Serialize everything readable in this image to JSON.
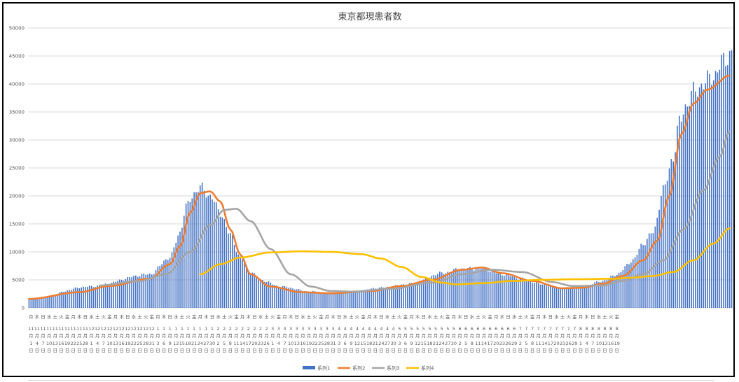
{
  "chart_data": {
    "type": "bar+line",
    "title": "東京都現患者数",
    "ylim": [
      0,
      50000
    ],
    "yticks": [
      0,
      5000,
      10000,
      15000,
      20000,
      25000,
      30000,
      35000,
      40000,
      45000,
      50000
    ],
    "weekdays": [
      "日",
      "月",
      "火",
      "水",
      "木",
      "金",
      "土"
    ],
    "first_weekday_index": 0,
    "xlabels": [
      "11/1",
      "11/4",
      "11/7",
      "11/10",
      "11/13",
      "11/16",
      "11/19",
      "11/22",
      "11/25",
      "11/28",
      "12/1",
      "12/4",
      "12/7",
      "12/10",
      "12/13",
      "12/16",
      "12/19",
      "12/22",
      "12/25",
      "12/28",
      "12/31",
      "1/3",
      "1/6",
      "1/9",
      "1/12",
      "1/15",
      "1/18",
      "1/21",
      "1/24",
      "1/27",
      "1/30",
      "2/2",
      "2/5",
      "2/8",
      "2/11",
      "2/14",
      "2/17",
      "2/20",
      "2/23",
      "2/26",
      "3/1",
      "3/4",
      "3/7",
      "3/10",
      "3/13",
      "3/16",
      "3/19",
      "3/22",
      "3/25",
      "3/28",
      "3/31",
      "4/3",
      "4/6",
      "4/9",
      "4/12",
      "4/15",
      "4/18",
      "4/21",
      "4/24",
      "4/27",
      "4/30",
      "5/3",
      "5/6",
      "5/9",
      "5/12",
      "5/15",
      "5/18",
      "5/21",
      "5/24",
      "5/27",
      "5/30",
      "6/2",
      "6/5",
      "6/8",
      "6/11",
      "6/14",
      "6/17",
      "6/20",
      "6/23",
      "6/26",
      "6/29",
      "7/2",
      "7/5",
      "7/8",
      "7/11",
      "7/14",
      "7/17",
      "7/20",
      "7/23",
      "7/26",
      "7/29",
      "8/1",
      "8/4",
      "8/7",
      "8/10",
      "8/13",
      "8/16",
      "8/19"
    ],
    "series": [
      {
        "name": "系列1",
        "type": "bar",
        "color": "#4472C4",
        "anchors": [
          [
            0,
            1500
          ],
          [
            30,
            3800
          ],
          [
            60,
            6000
          ],
          [
            70,
            9000
          ],
          [
            75,
            13500
          ],
          [
            78,
            18000
          ],
          [
            82,
            20500
          ],
          [
            85,
            21500
          ],
          [
            90,
            20000
          ],
          [
            95,
            17000
          ],
          [
            100,
            13000
          ],
          [
            105,
            9000
          ],
          [
            110,
            6500
          ],
          [
            115,
            5000
          ],
          [
            125,
            3800
          ],
          [
            140,
            2900
          ],
          [
            150,
            2600
          ],
          [
            160,
            2800
          ],
          [
            175,
            3600
          ],
          [
            190,
            4300
          ],
          [
            205,
            6200
          ],
          [
            215,
            7000
          ],
          [
            225,
            7000
          ],
          [
            235,
            6000
          ],
          [
            245,
            5200
          ],
          [
            255,
            4200
          ],
          [
            265,
            3500
          ],
          [
            275,
            3800
          ],
          [
            285,
            4800
          ],
          [
            292,
            6000
          ],
          [
            300,
            8500
          ],
          [
            305,
            11500
          ],
          [
            310,
            13500
          ],
          [
            315,
            21000
          ],
          [
            320,
            27000
          ],
          [
            323,
            33000
          ],
          [
            326,
            36000
          ],
          [
            330,
            38500
          ],
          [
            335,
            40000
          ],
          [
            340,
            41500
          ],
          [
            345,
            44000
          ],
          [
            348,
            45500
          ]
        ]
      },
      {
        "name": "系列2",
        "type": "line",
        "color": "#ED7D31",
        "anchors": [
          [
            0,
            1600
          ],
          [
            25,
            2800
          ],
          [
            40,
            3900
          ],
          [
            60,
            5200
          ],
          [
            70,
            7800
          ],
          [
            75,
            11000
          ],
          [
            80,
            17000
          ],
          [
            85,
            20500
          ],
          [
            90,
            20800
          ],
          [
            95,
            19000
          ],
          [
            100,
            14000
          ],
          [
            105,
            9500
          ],
          [
            110,
            6000
          ],
          [
            120,
            3800
          ],
          [
            135,
            2800
          ],
          [
            150,
            2600
          ],
          [
            170,
            3000
          ],
          [
            185,
            3900
          ],
          [
            200,
            5000
          ],
          [
            215,
            6800
          ],
          [
            225,
            7200
          ],
          [
            235,
            6200
          ],
          [
            250,
            4800
          ],
          [
            265,
            3500
          ],
          [
            275,
            3600
          ],
          [
            285,
            4300
          ],
          [
            295,
            5700
          ],
          [
            305,
            8500
          ],
          [
            312,
            12000
          ],
          [
            318,
            20000
          ],
          [
            324,
            31000
          ],
          [
            330,
            36500
          ],
          [
            337,
            39000
          ],
          [
            348,
            41500
          ]
        ]
      },
      {
        "name": "系列3",
        "type": "line",
        "color": "#A5A5A5",
        "anchors": [
          [
            35,
            4000
          ],
          [
            55,
            4800
          ],
          [
            68,
            6000
          ],
          [
            80,
            10000
          ],
          [
            90,
            14800
          ],
          [
            97,
            17500
          ],
          [
            103,
            17700
          ],
          [
            110,
            15500
          ],
          [
            120,
            10500
          ],
          [
            130,
            6000
          ],
          [
            140,
            3800
          ],
          [
            150,
            3000
          ],
          [
            160,
            2900
          ],
          [
            180,
            3400
          ],
          [
            200,
            4500
          ],
          [
            215,
            6000
          ],
          [
            230,
            6800
          ],
          [
            245,
            6400
          ],
          [
            260,
            4600
          ],
          [
            270,
            3900
          ],
          [
            285,
            4000
          ],
          [
            295,
            4800
          ],
          [
            305,
            6000
          ],
          [
            315,
            8500
          ],
          [
            325,
            14000
          ],
          [
            335,
            21000
          ],
          [
            343,
            27000
          ],
          [
            348,
            31500
          ]
        ]
      },
      {
        "name": "系列4",
        "type": "line",
        "color": "#FFC000",
        "anchors": [
          [
            85,
            6000
          ],
          [
            95,
            7800
          ],
          [
            105,
            9000
          ],
          [
            120,
            9900
          ],
          [
            135,
            10100
          ],
          [
            150,
            10000
          ],
          [
            165,
            9600
          ],
          [
            175,
            8800
          ],
          [
            185,
            7300
          ],
          [
            195,
            5500
          ],
          [
            205,
            4500
          ],
          [
            212,
            4200
          ],
          [
            225,
            4400
          ],
          [
            240,
            4800
          ],
          [
            255,
            5000
          ],
          [
            270,
            5100
          ],
          [
            290,
            5200
          ],
          [
            300,
            5400
          ],
          [
            310,
            5700
          ],
          [
            320,
            6400
          ],
          [
            330,
            8500
          ],
          [
            340,
            11500
          ],
          [
            348,
            14200
          ]
        ]
      }
    ],
    "legend_position": "bottom",
    "grid": true
  }
}
